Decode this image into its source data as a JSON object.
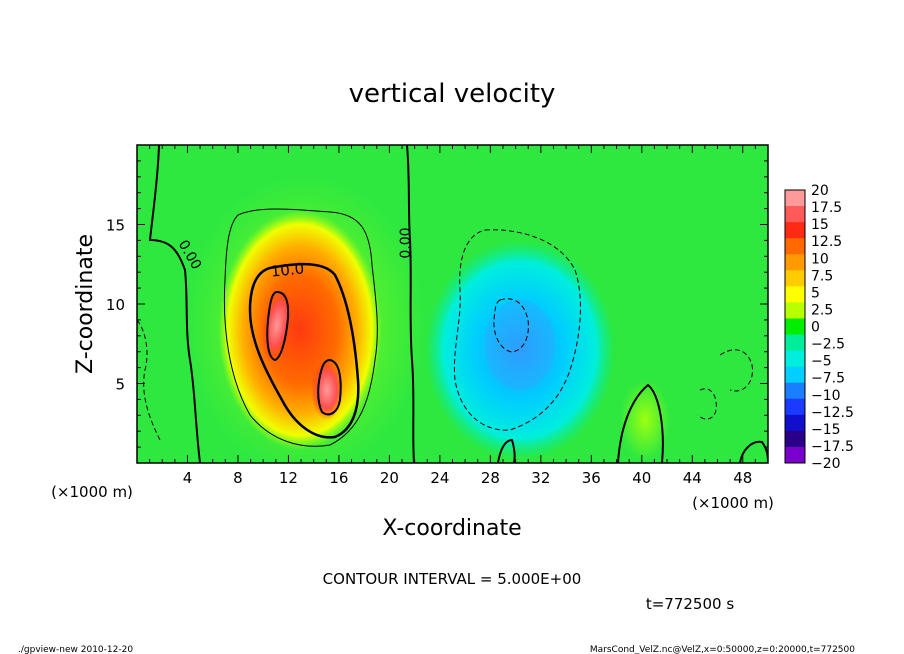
{
  "chart_data": {
    "type": "heatmap",
    "title": "vertical velocity",
    "xlabel": "X-coordinate",
    "ylabel": "Z-coordinate",
    "x_unit": "(×1000 m)",
    "xlim": [
      0,
      50
    ],
    "ylim": [
      0,
      20
    ],
    "x_ticks": [
      4,
      8,
      12,
      16,
      20,
      24,
      28,
      32,
      36,
      40,
      44,
      48
    ],
    "y_ticks": [
      5,
      10,
      15
    ],
    "colorbar": {
      "labels": [
        "20",
        "17.5",
        "15",
        "12.5",
        "10",
        "7.5",
        "5",
        "2.5",
        "0",
        "−2.5",
        "−5",
        "−7.5",
        "−10",
        "−12.5",
        "−15",
        "−17.5",
        "−20"
      ],
      "colors": [
        "#ff9a9a",
        "#ff5a5a",
        "#ff2a14",
        "#ff6a00",
        "#ff9a00",
        "#ffcc00",
        "#ffff00",
        "#b8ff00",
        "#00ee00",
        "#00ee9a",
        "#00eedd",
        "#00cfff",
        "#1a7fff",
        "#1a3aff",
        "#1010cc",
        "#2a0088",
        "#7a00cc"
      ]
    },
    "contour_interval": "CONTOUR INTERVAL = 5.000E+00",
    "contour_labels": [
      "10.0",
      "0.00",
      "0.00"
    ],
    "time": "t=772500 s",
    "features": [
      {
        "kind": "updraft",
        "x": 13.0,
        "z": 8.0,
        "peak": 20
      },
      {
        "kind": "downdraft",
        "x": 30.0,
        "z": 7.5,
        "peak": -8
      }
    ]
  },
  "footer": {
    "left": "./gpview-new   2010-12-20",
    "right": "MarsCond_VelZ.nc@VelZ,x=0:50000,z=0:20000,t=772500"
  }
}
